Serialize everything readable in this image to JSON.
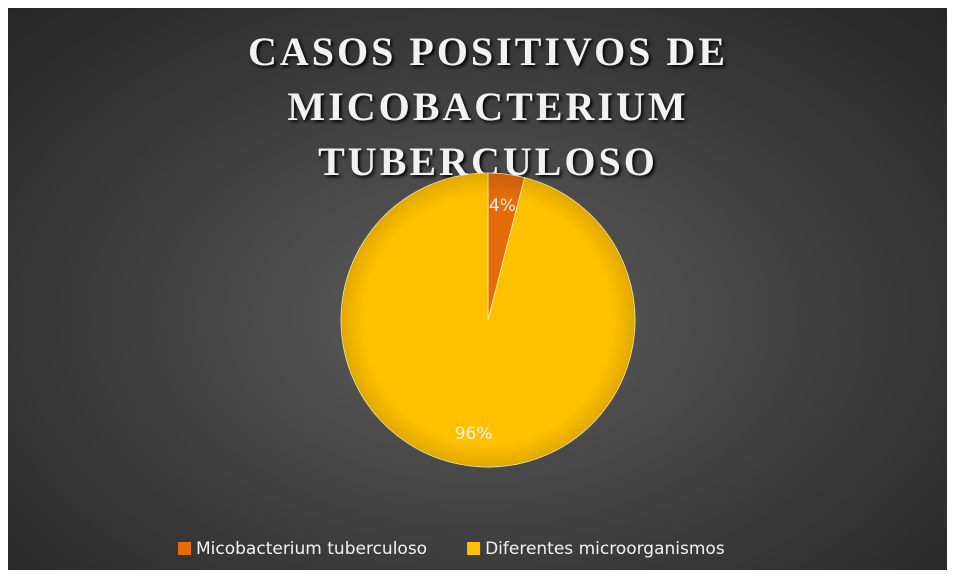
{
  "chart_data": {
    "type": "pie",
    "title": "CASOS POSITIVOS DE MICOBACTERIUM TUBERCULOSO",
    "categories": [
      "Micobacterium tuberculoso",
      "Diferentes microorganismos"
    ],
    "values": [
      4,
      96
    ],
    "value_labels": [
      "4%",
      "96%"
    ],
    "colors": [
      "#e46c0a",
      "#ffc000"
    ],
    "legend": "bottom"
  }
}
